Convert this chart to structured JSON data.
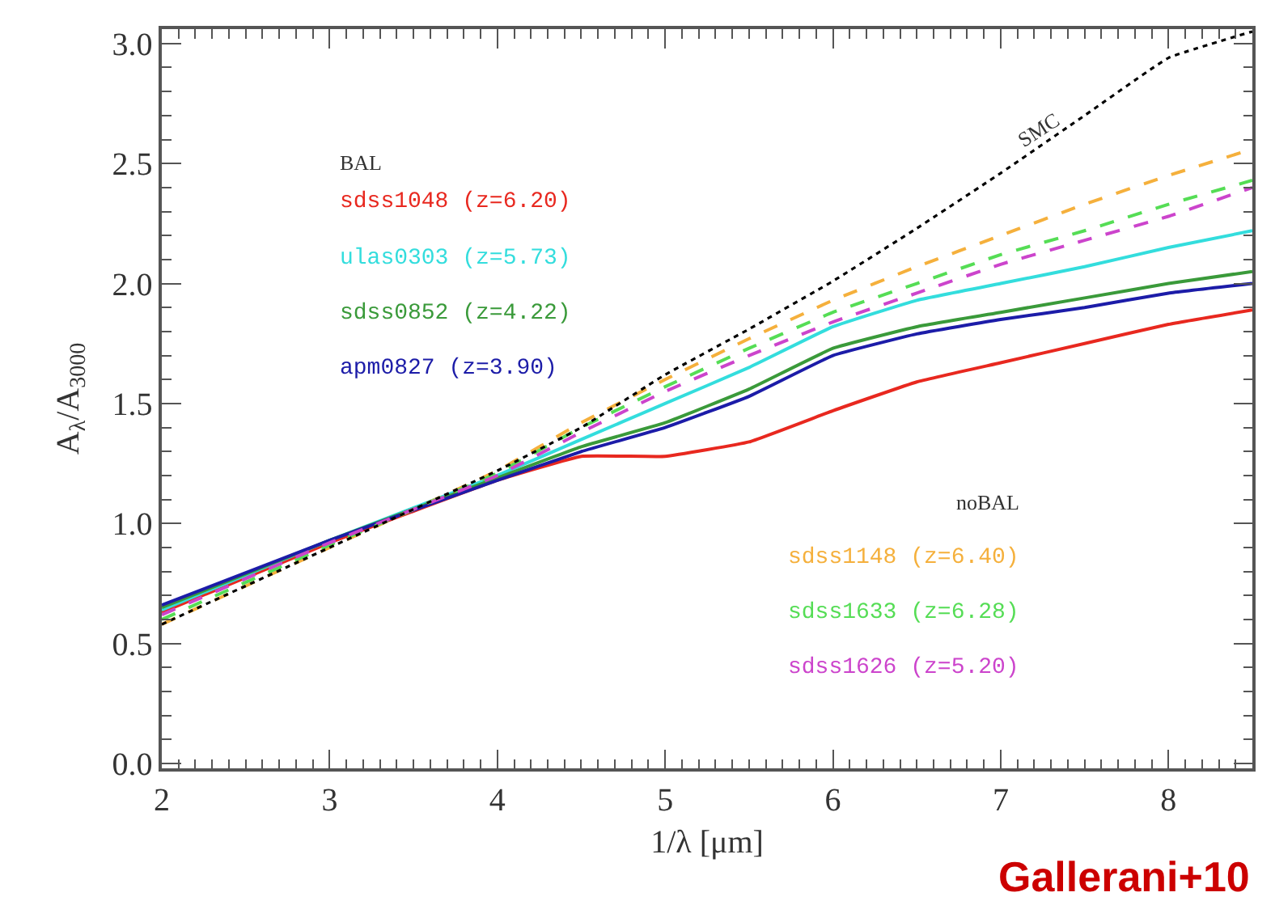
{
  "chart_data": {
    "type": "line",
    "xlabel": "1/λ [μm]",
    "ylabel": "A$_{λ}$/A$_{3000}$",
    "x": [
      2,
      3,
      4,
      4.5,
      5,
      5.5,
      6,
      6.5,
      7,
      7.5,
      8,
      8.5
    ],
    "series": [
      {
        "name": "sdss1048 (z=6.20)",
        "color": "#e8281f",
        "line_style": "solid",
        "values": [
          0.63,
          0.92,
          1.18,
          1.28,
          1.28,
          1.34,
          1.47,
          1.59,
          1.67,
          1.75,
          1.83,
          1.89
        ]
      },
      {
        "name": "ulas0303 (z=5.73)",
        "color": "#33dddd",
        "line_style": "solid",
        "values": [
          0.64,
          0.93,
          1.2,
          1.35,
          1.5,
          1.65,
          1.82,
          1.93,
          2.0,
          2.07,
          2.15,
          2.22
        ]
      },
      {
        "name": "sdss0852 (z=4.22)",
        "color": "#3a9a3a",
        "line_style": "solid",
        "values": [
          0.65,
          0.93,
          1.19,
          1.32,
          1.42,
          1.56,
          1.73,
          1.82,
          1.88,
          1.94,
          2.0,
          2.05
        ]
      },
      {
        "name": "apm0827 (z=3.90)",
        "color": "#1c1ca8",
        "line_style": "solid",
        "values": [
          0.66,
          0.93,
          1.18,
          1.3,
          1.4,
          1.53,
          1.7,
          1.79,
          1.85,
          1.9,
          1.96,
          2.0
        ]
      },
      {
        "name": "sdss1148 (z=6.40)",
        "color": "#f5b03c",
        "line_style": "dashed",
        "values": [
          0.58,
          0.9,
          1.22,
          1.42,
          1.6,
          1.77,
          1.93,
          2.07,
          2.2,
          2.33,
          2.45,
          2.56
        ]
      },
      {
        "name": "sdss1633 (z=6.28)",
        "color": "#55dd55",
        "line_style": "dashed",
        "values": [
          0.6,
          0.91,
          1.21,
          1.4,
          1.57,
          1.73,
          1.88,
          2.0,
          2.12,
          2.22,
          2.33,
          2.43
        ]
      },
      {
        "name": "sdss1626 (z=5.20)",
        "color": "#cc44cc",
        "line_style": "dashed",
        "values": [
          0.62,
          0.92,
          1.2,
          1.38,
          1.55,
          1.7,
          1.84,
          1.96,
          2.08,
          2.18,
          2.28,
          2.4
        ]
      },
      {
        "color": "#000000",
        "line_style": "dotted",
        "values": [
          0.58,
          0.9,
          1.22,
          1.4,
          1.62,
          1.81,
          2.01,
          2.23,
          2.46,
          2.7,
          2.94,
          3.05
        ]
      }
    ],
    "xlim": [
      2,
      8.5
    ],
    "ylim": [
      -0.02,
      3.06
    ],
    "xticks": [
      2,
      3,
      4,
      5,
      6,
      7,
      8
    ],
    "yticks": [
      {
        "value": 0,
        "label": "0.0"
      },
      {
        "value": 0.5,
        "label": "0.5"
      },
      {
        "value": 1,
        "label": "1.0"
      },
      {
        "value": 1.5,
        "label": "1.5"
      },
      {
        "value": 2,
        "label": "2.0"
      },
      {
        "value": 2.5,
        "label": "2.5"
      },
      {
        "value": 3,
        "label": "3.0"
      }
    ],
    "legend": false,
    "marker": "none",
    "annotations": [
      "BAL",
      "noBAL",
      "SMC",
      "Gallerani+10"
    ]
  }
}
